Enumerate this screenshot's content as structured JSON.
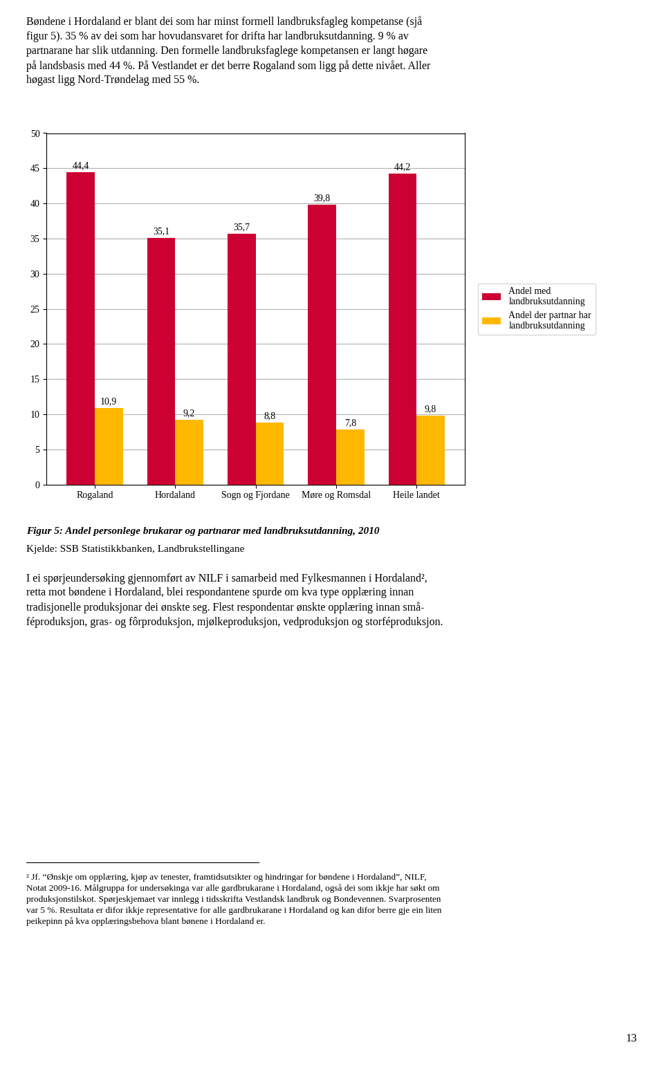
{
  "chart_data": {
    "type": "bar",
    "title": "Figur 5: Andel personlege brukarar og partnarar med landbruksutdanning, 2010",
    "subtitle": "Kjelde: SSB Statistikkbanken, Landbrukstellingane",
    "categories": [
      "Rogaland",
      "Hordaland",
      "Sogn og Fjordane",
      "Møre og Romsdal",
      "Heile landet"
    ],
    "series": [
      {
        "name": "Andel med\nlandbruksutdanning",
        "color": "#CC0033",
        "values": [
          44.4,
          35.1,
          35.7,
          39.8,
          44.2
        ],
        "value_labels": [
          "44,4",
          "35,1",
          "35,7",
          "39,8",
          "44,2"
        ]
      },
      {
        "name": "Andel der partnar har\nlandbruksutdanning",
        "color": "#FFB800",
        "values": [
          10.9,
          9.2,
          8.8,
          7.8,
          9.8
        ],
        "value_labels": [
          "10,9",
          "9,2",
          "8,8",
          "7,8",
          "9,8"
        ]
      }
    ],
    "ylim": [
      0,
      50
    ],
    "yticks": [
      0,
      5,
      10,
      15,
      20,
      25,
      30,
      35,
      40,
      45,
      50
    ],
    "grid": true,
    "legend": "center left",
    "data_labels": true,
    "annotations": [
      "Bøndene i Hordaland er blant dei som har minst formell landbruksfagleg kompetanse (sjå\nfigur 5). 35 % av dei som har hovudansvaret for drifta har landbruksutdanning. 9 % av\npartnarane har slik utdanning. Den formelle landbruksfaglege kompetansen er langt høgare\npå landsbasis med 44 %. På Vestlandet er det berre Rogaland som ligg på dette nivået. Aller\nhøgast ligg Nord-Trøndelag med 55 %.",
      "I ei spørjeundersøking gjennomført av NILF i samarbeid med Fylkesmannen i Hordaland²,\nretta mot bøndene i Hordaland, blei respondantene spurde om kva type opplæring innan\ntradisjonelle produksjonar dei ønskte seg. Flest respondentar ønskte opplæring innan små-\nféproduksjon, gras- og fôrproduksjon, mjølkeproduksjon, vedproduksjon og storféproduksjon.",
      "² Jf. “Ønskje om opplæring, kjøp av tenester, framtidsutsikter og hindringar for bøndene i Hordaland”, NILF,\nNotat 2009-16. Målgruppa for undersøkinga var alle gardbrukarane i Hordaland, også dei som ikkje har søkt om\nproduksjonstilskot. Spørjeskjemaet var innlegg i tidsskrifta Vestlandsk landbruk og Bondevennen. Svarprosenten\nvar 5 %. Resultata er difor ikkje representative for alle gardbrukarane i Hordaland og kan difor berre gje ein liten\npeikepinn på kva opplæringsbehova blant bønene i Hordaland er.",
      "13"
    ]
  }
}
